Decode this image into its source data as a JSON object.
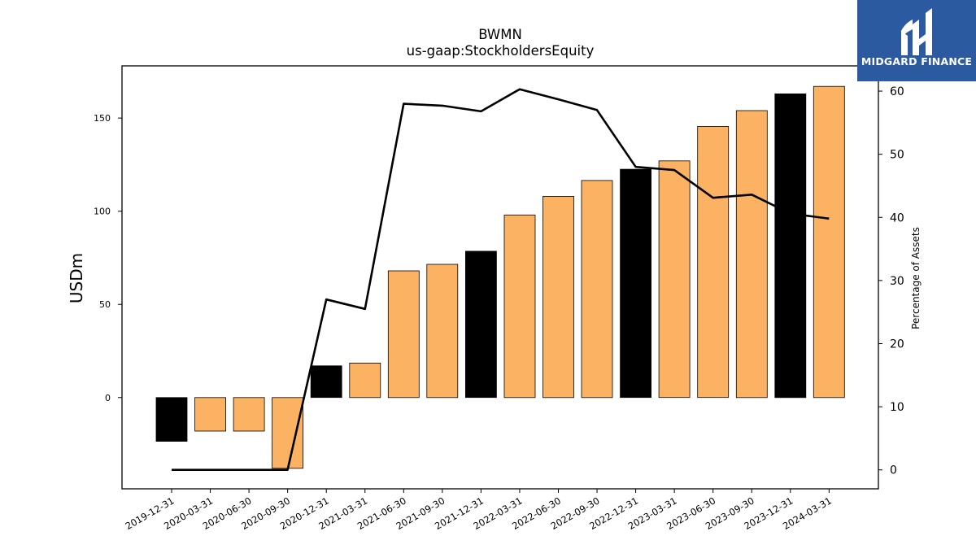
{
  "chart_data": {
    "type": "bar",
    "title": "BWMN",
    "subtitle": "us-gaap:StockholdersEquity",
    "ylabel": "USDm",
    "y2label": "Percentage of Assets",
    "xlabel": "",
    "ylim": [
      -49,
      178
    ],
    "y2lim": [
      -3,
      64
    ],
    "yticks": [
      0,
      50,
      100,
      150
    ],
    "y2ticks": [
      0,
      10,
      20,
      30,
      40,
      50,
      60
    ],
    "categories": [
      "2019-12-31",
      "2020-03-31",
      "2020-06-30",
      "2020-09-30",
      "2020-12-31",
      "2021-03-31",
      "2021-06-30",
      "2021-09-30",
      "2021-12-31",
      "2022-03-31",
      "2022-06-30",
      "2022-09-30",
      "2022-12-31",
      "2023-03-31",
      "2023-06-30",
      "2023-09-30",
      "2023-12-31",
      "2024-03-31"
    ],
    "series": [
      {
        "kind": "bar",
        "axis": "left",
        "values": [
          -23.5,
          -18,
          -18,
          -38,
          17,
          18.5,
          68,
          71.5,
          78.5,
          98,
          108,
          116.5,
          122.5,
          127,
          145.5,
          154,
          163,
          167
        ],
        "colors": [
          "#000000",
          "#fbb262",
          "#fbb262",
          "#fbb262",
          "#000000",
          "#fbb262",
          "#fbb262",
          "#fbb262",
          "#000000",
          "#fbb262",
          "#fbb262",
          "#fbb262",
          "#000000",
          "#fbb262",
          "#fbb262",
          "#fbb262",
          "#000000",
          "#fbb262"
        ]
      },
      {
        "kind": "line",
        "axis": "right",
        "color": "#000000",
        "values": [
          0,
          0,
          0,
          0,
          27,
          25.5,
          58,
          57.7,
          56.8,
          60.3,
          58.7,
          57,
          48,
          47.5,
          43.1,
          43.6,
          40.6,
          39.8
        ]
      }
    ],
    "grid": false,
    "legend": "none"
  },
  "logo": {
    "text": "MIDGARD FINANCE",
    "background": "#2c5aa0"
  }
}
